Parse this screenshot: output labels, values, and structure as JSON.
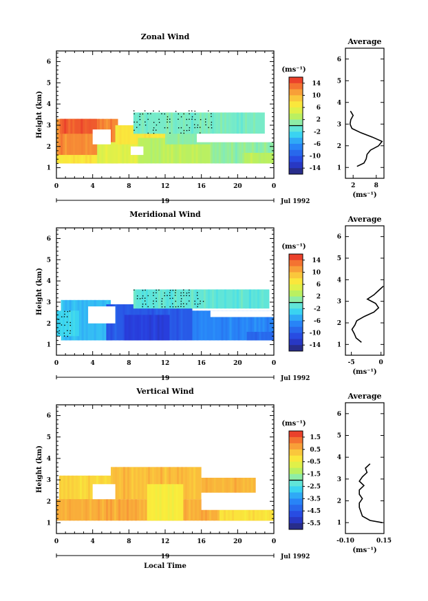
{
  "chart_data": [
    {
      "type": "heatmap",
      "title": "Zonal Wind",
      "ylabel": "Height (km)",
      "ylim": [
        0.5,
        6.5
      ],
      "yticks": [
        "1",
        "2",
        "3",
        "4",
        "5",
        "6"
      ],
      "xlim": [
        0,
        24
      ],
      "xticks": [
        "0",
        "4",
        "8",
        "12",
        "16",
        "20",
        "0"
      ],
      "date_marker": "19",
      "date_label": "Jul 1992",
      "colorbar": {
        "unit": "(ms⁻¹)",
        "range": [
          -16,
          16
        ],
        "ticks": [
          "14",
          "10",
          "6",
          "2",
          "-2",
          "-6",
          "-10",
          "-14"
        ]
      },
      "regions": [
        {
          "x0": 0,
          "x1": 6.8,
          "y0": 1.2,
          "y1": 3.3,
          "value": 12
        },
        {
          "x0": 0.4,
          "x1": 4.5,
          "y0": 2.6,
          "y1": 3.3,
          "value": 14
        },
        {
          "x0": 0,
          "x1": 6,
          "y0": 1.2,
          "y1": 1.6,
          "value": 7
        },
        {
          "x0": 4.5,
          "x1": 9.5,
          "y0": 1.2,
          "y1": 2.2,
          "value": 5
        },
        {
          "x0": 6.5,
          "x1": 12,
          "y0": 2.1,
          "y1": 3.0,
          "value": 7
        },
        {
          "x0": 9,
          "x1": 17,
          "y0": 1.2,
          "y1": 2.4,
          "value": 3
        },
        {
          "x0": 12,
          "x1": 17,
          "y0": 2.1,
          "y1": 3.3,
          "value": 1
        },
        {
          "x0": 17,
          "x1": 24,
          "y0": 1.2,
          "y1": 2.3,
          "value": 1
        },
        {
          "x0": 20.5,
          "x1": 24,
          "y0": 1.2,
          "y1": 1.7,
          "value": 3
        },
        {
          "x0": 8.5,
          "x1": 23,
          "y0": 2.6,
          "y1": 3.6,
          "value": 0
        }
      ],
      "gaps": [
        {
          "x0": 4.0,
          "x1": 6.0,
          "y0": 2.1,
          "y1": 2.8
        },
        {
          "x0": 15.5,
          "x1": 24,
          "y0": 2.2,
          "y1": 2.6
        },
        {
          "x0": 8.2,
          "x1": 9.6,
          "y0": 1.6,
          "y1": 2.0
        }
      ],
      "cloud": [
        {
          "x0": 8.5,
          "x1": 17.5,
          "y0": 2.5,
          "y1": 3.7
        }
      ],
      "average": {
        "xlim": [
          0,
          10
        ],
        "xticks": [
          "2",
          "8"
        ],
        "xtick_values": [
          2,
          8
        ],
        "xlabel": "(ms⁻¹)",
        "height": [
          1.05,
          1.2,
          1.4,
          1.6,
          1.8,
          2.0,
          2.2,
          2.4,
          2.6,
          2.8,
          3.0,
          3.2,
          3.4,
          3.6
        ],
        "value": [
          3.0,
          4.8,
          5.4,
          5.6,
          6.5,
          8.6,
          9.5,
          7.0,
          4.0,
          1.7,
          1.2,
          1.4,
          2.0,
          1.3
        ]
      }
    },
    {
      "type": "heatmap",
      "title": "Meridional Wind",
      "ylabel": "Height (km)",
      "ylim": [
        0.5,
        6.5
      ],
      "yticks": [
        "1",
        "2",
        "3",
        "4",
        "5",
        "6"
      ],
      "xlim": [
        0,
        24
      ],
      "xticks": [
        "0",
        "4",
        "8",
        "12",
        "16",
        "20",
        "0"
      ],
      "date_marker": "19",
      "date_label": "Jul 1992",
      "colorbar": {
        "unit": "(ms⁻¹)",
        "range": [
          -16,
          16
        ],
        "ticks": [
          "14",
          "10",
          "6",
          "2",
          "-2",
          "-6",
          "-10",
          "-14"
        ]
      },
      "regions": [
        {
          "x0": 0.5,
          "x1": 6,
          "y0": 1.2,
          "y1": 3.1,
          "value": -4
        },
        {
          "x0": 0,
          "x1": 2.5,
          "y0": 1.4,
          "y1": 2.6,
          "value": -3
        },
        {
          "x0": 5.5,
          "x1": 15,
          "y0": 1.2,
          "y1": 2.9,
          "value": -10
        },
        {
          "x0": 7.5,
          "x1": 12.5,
          "y0": 1.2,
          "y1": 2.4,
          "value": -12
        },
        {
          "x0": 15,
          "x1": 24,
          "y0": 1.2,
          "y1": 2.6,
          "value": -7
        },
        {
          "x0": 21,
          "x1": 24,
          "y0": 1.2,
          "y1": 1.6,
          "value": -9
        },
        {
          "x0": 8.5,
          "x1": 23.5,
          "y0": 2.7,
          "y1": 3.6,
          "value": -1
        }
      ],
      "gaps": [
        {
          "x0": 3.5,
          "x1": 6.5,
          "y0": 2.0,
          "y1": 2.8
        },
        {
          "x0": 17,
          "x1": 24,
          "y0": 2.3,
          "y1": 2.6
        }
      ],
      "cloud": [
        {
          "x0": 8.5,
          "x1": 16.5,
          "y0": 2.6,
          "y1": 3.6
        },
        {
          "x0": 0.2,
          "x1": 1.8,
          "y0": 1.2,
          "y1": 2.6
        }
      ],
      "average": {
        "xlim": [
          -6,
          0.5
        ],
        "xticks": [
          "-5",
          "0"
        ],
        "xtick_values": [
          -5,
          0
        ],
        "xlabel": "(ms⁻¹)",
        "height": [
          1.1,
          1.3,
          1.5,
          1.7,
          1.9,
          2.1,
          2.3,
          2.5,
          2.7,
          2.9,
          3.1,
          3.3,
          3.5,
          3.7
        ],
        "value": [
          -3.3,
          -4.2,
          -4.5,
          -4.9,
          -4.4,
          -4.1,
          -2.8,
          -1.2,
          -0.4,
          -0.9,
          -2.3,
          -1.2,
          -0.4,
          0.4
        ]
      }
    },
    {
      "type": "heatmap",
      "title": "Vertical Wind",
      "ylabel": "Height (km)",
      "xlabel": "Local Time",
      "ylim": [
        0.5,
        6.5
      ],
      "yticks": [
        "1",
        "2",
        "3",
        "4",
        "5",
        "6"
      ],
      "xlim": [
        0,
        24
      ],
      "xticks": [
        "0",
        "4",
        "8",
        "12",
        "16",
        "20",
        "0"
      ],
      "date_marker": "19",
      "date_label": "Jul 1992",
      "colorbar": {
        "unit": "(ms⁻¹)",
        "range": [
          -6,
          2
        ],
        "ticks": [
          "1.5",
          "0.5",
          "-0.5",
          "-1.5",
          "-2.5",
          "-3.5",
          "-4.5",
          "-5.5"
        ]
      },
      "regions": [
        {
          "x0": 0.3,
          "x1": 6,
          "y0": 1.2,
          "y1": 3.2,
          "value": 0.0
        },
        {
          "x0": 0,
          "x1": 24,
          "y0": 1.1,
          "y1": 2.1,
          "value": 0.6
        },
        {
          "x0": 6,
          "x1": 16,
          "y0": 2.1,
          "y1": 3.6,
          "value": 0.4
        },
        {
          "x0": 16,
          "x1": 22,
          "y0": 2.4,
          "y1": 3.1,
          "value": 0.5
        },
        {
          "x0": 10,
          "x1": 14,
          "y0": 1.1,
          "y1": 2.8,
          "value": -0.3
        },
        {
          "x0": 18,
          "x1": 24,
          "y0": 1.1,
          "y1": 1.6,
          "value": -0.2
        }
      ],
      "gaps": [
        {
          "x0": 4,
          "x1": 6.5,
          "y0": 2.1,
          "y1": 2.8
        },
        {
          "x0": 16,
          "x1": 24,
          "y0": 1.6,
          "y1": 2.4
        }
      ],
      "cloud": [],
      "average": {
        "xlim": [
          -0.1,
          0.15
        ],
        "xticks": [
          "-0.10",
          "0.15"
        ],
        "xtick_values": [
          -0.1,
          0.15
        ],
        "xlabel": "(ms⁻¹)",
        "height": [
          1.0,
          1.1,
          1.3,
          1.5,
          1.7,
          1.9,
          2.1,
          2.3,
          2.5,
          2.7,
          2.9,
          3.1,
          3.3,
          3.5,
          3.7
        ],
        "value": [
          0.14,
          0.06,
          0.01,
          0.0,
          -0.01,
          -0.01,
          0.01,
          -0.01,
          -0.01,
          0.02,
          -0.01,
          0.01,
          0.04,
          0.03,
          0.06
        ]
      }
    }
  ]
}
